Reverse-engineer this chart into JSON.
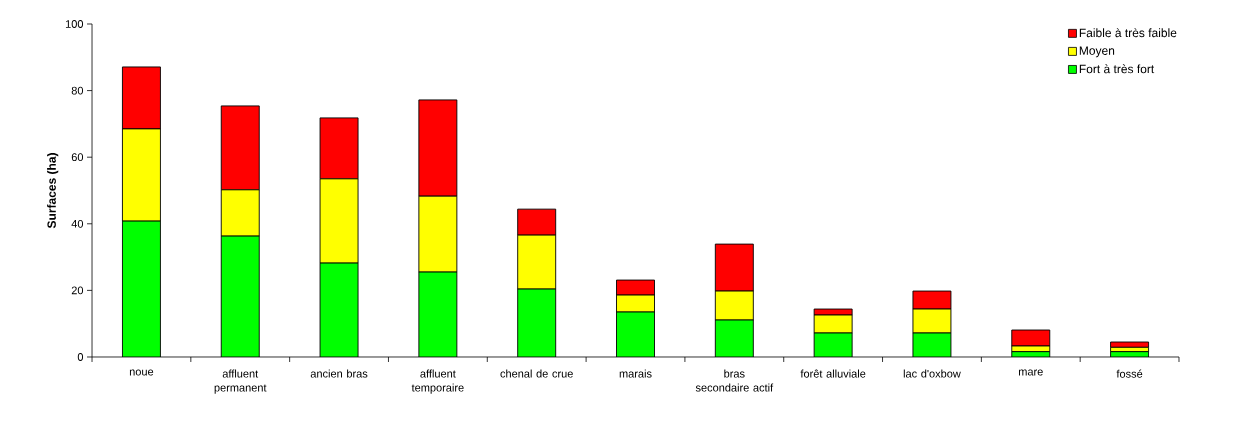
{
  "chart_data": {
    "type": "bar",
    "stacked": true,
    "ylabel": "Surfaces (ha)",
    "categories": [
      "noue",
      "affluent permanent",
      "ancien bras",
      "affluent temporaire",
      "chenal de crue",
      "marais",
      "bras secondaire actif",
      "forêt alluviale",
      "lac d'oxbow",
      "mare",
      "fossé"
    ],
    "series": [
      {
        "name": "Fort à très fort",
        "color": "#00ff00",
        "values": [
          40.8,
          36.3,
          28.2,
          25.5,
          20.4,
          13.5,
          11.1,
          7.2,
          7.2,
          1.6,
          1.6
        ]
      },
      {
        "name": "Moyen",
        "color": "#ffff00",
        "values": [
          27.7,
          13.9,
          25.3,
          22.8,
          16.2,
          5.1,
          8.7,
          5.4,
          7.2,
          1.7,
          1.3
        ]
      },
      {
        "name": "Faible à très faible",
        "color": "#ff0000",
        "values": [
          18.6,
          25.2,
          18.3,
          28.9,
          7.8,
          4.5,
          14.1,
          1.8,
          5.4,
          4.8,
          1.6
        ]
      }
    ],
    "ylim": [
      0,
      100
    ],
    "yticks": [
      0,
      20,
      40,
      60,
      80,
      100
    ],
    "grid": false,
    "legend": "top right"
  }
}
